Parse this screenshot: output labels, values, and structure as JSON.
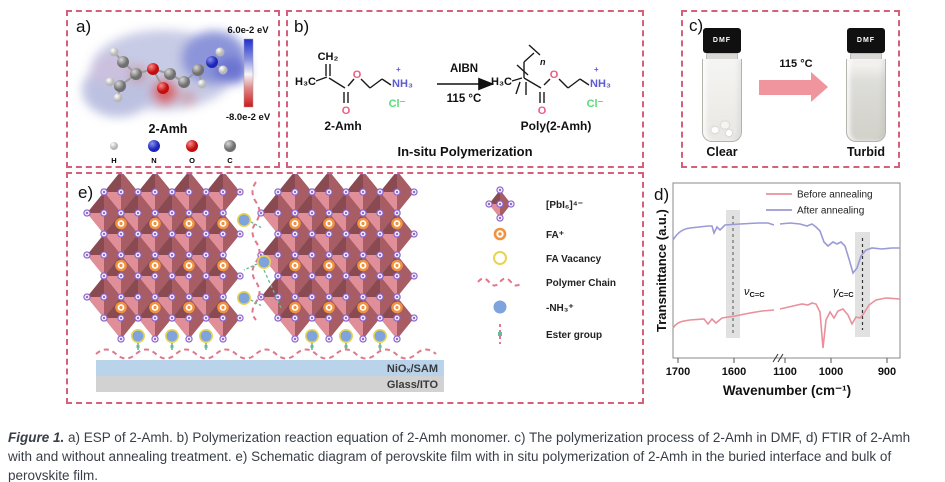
{
  "figure": {
    "caption_prefix": "Figure 1.",
    "caption_body": "a) ESP of 2-Amh. b) Polymerization reaction equation of 2-Amh monomer. c) The polymerization process of 2-Amh in DMF, d) FTIR of 2-Amh with and without annealing treatment. e) Schematic diagram of perovskite film with in situ polymerization of 2-Amh in the buried interface and bulk of perovskite film."
  },
  "panel_a": {
    "label": "a)",
    "molecule": "2-Amh",
    "colorbar_top": "6.0e-2 eV",
    "colorbar_bottom": "-8.0e-2 eV",
    "atoms": [
      "H",
      "N",
      "O",
      "C"
    ]
  },
  "panel_b": {
    "label": "b)",
    "reactant_label": "2-Amh",
    "product_label": "Poly(2-Amh)",
    "condition_top": "AIBN",
    "condition_bottom": "115 °C",
    "caption": "In-situ Polymerization",
    "atoms": {
      "ch2": "CH₂",
      "h3c": "H₃C",
      "o": "O",
      "plus": "+",
      "nh3": "NH₃",
      "cl": "Cl⁻",
      "n": "n"
    }
  },
  "panel_c": {
    "label": "c)",
    "cap_label": "DMF",
    "arrow_label": "115 °C",
    "left_caption": "Clear",
    "right_caption": "Turbid"
  },
  "panel_d": {
    "label": "d)",
    "ylabel": "Transmittance (a.u.)",
    "xlabel": "Wavenumber (cm⁻¹)",
    "legend": [
      "Before annealing",
      "After annealing"
    ],
    "ticks": [
      "1700",
      "1600",
      "1100",
      "1000",
      "900"
    ],
    "ann1_main": "ν",
    "ann1_sub": "C=C",
    "ann2_main": "γ",
    "ann2_sub": "C=C"
  },
  "panel_e": {
    "label": "e)",
    "legend_labels": [
      "[PbI₆]⁴⁻",
      "FA⁺",
      "FA Vacancy",
      "Polymer Chain",
      "-NH₃⁺",
      "Ester group"
    ],
    "layer1": "NiOₓ/SAM",
    "layer2": "Glass/ITO"
  },
  "colors": {
    "border": "#d4607a",
    "octahedron_dark": "#8a4a52",
    "octahedron_mid": "#a85c63",
    "octahedron_light": "#e08f98",
    "iodine": "#8a63cc",
    "fa": "#f0923f",
    "vacancy": "#e8d44f",
    "nh3": "#7fa3dc",
    "polymer": "#e0788c",
    "ester": "#66bb99",
    "layer_niox": "#b9d3ea",
    "layer_glass": "#d2d2d2",
    "curve_before": "#e8919c",
    "curve_after": "#9a9ad6",
    "arrow_pink": "#f0949e",
    "o_atom": "#ef5b7e",
    "n_label": "#5b5bd6",
    "cl_label": "#55dd77",
    "esp_positive_blue": "#3d4ecc",
    "esp_negative_red": "#cc2222"
  },
  "chart_data": {
    "type": "line",
    "title": "FTIR of 2-Amh with and without annealing",
    "xlabel": "Wavenumber (cm⁻¹)",
    "ylabel": "Transmittance (a.u.)",
    "x_axis_reversed": true,
    "x_ticks": [
      1700,
      1600,
      1100,
      1000,
      900
    ],
    "axis_break_between": [
      1600,
      1100
    ],
    "grid": false,
    "legend_position": "top-right",
    "highlight_bands_cm": [
      1600,
      940
    ],
    "annotations": [
      "νC=C at ~1600 cm⁻¹",
      "γC=C at ~940 cm⁻¹"
    ],
    "series": [
      {
        "name": "Before annealing",
        "color": "#e8919c",
        "x": [
          1700,
          1670,
          1650,
          1640,
          1630,
          1600,
          1550,
          1400,
          1200,
          1100,
          1060,
          1030,
          1015,
          1000,
          990,
          975,
          960,
          950,
          940,
          925,
          910,
          900
        ],
        "y": [
          0.16,
          0.21,
          0.22,
          0.17,
          0.22,
          0.24,
          0.25,
          0.27,
          0.29,
          0.3,
          0.32,
          0.33,
          0.05,
          0.25,
          0.22,
          0.27,
          0.18,
          0.24,
          0.23,
          0.31,
          0.34,
          0.34
        ]
      },
      {
        "name": "After annealing",
        "color": "#9a9ad6",
        "x": [
          1700,
          1670,
          1650,
          1640,
          1630,
          1600,
          1550,
          1400,
          1200,
          1100,
          1060,
          1030,
          1015,
          1000,
          990,
          975,
          960,
          950,
          940,
          925,
          910,
          900
        ],
        "y": [
          0.62,
          0.7,
          0.71,
          0.66,
          0.71,
          0.72,
          0.73,
          0.74,
          0.74,
          0.73,
          0.71,
          0.65,
          0.63,
          0.66,
          0.64,
          0.58,
          0.45,
          0.52,
          0.6,
          0.63,
          0.63,
          0.63
        ]
      }
    ]
  }
}
